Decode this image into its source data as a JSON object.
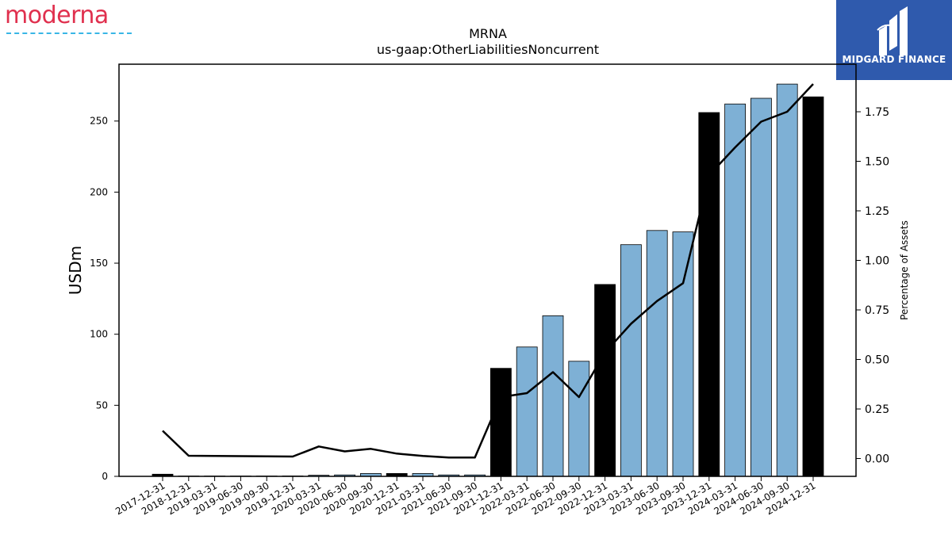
{
  "branding": {
    "company_wordmark": "moderna",
    "company_color": "#e0304e",
    "company_underline_color": "#39b6e6",
    "partner_name": "MIDGARD FINANCE",
    "partner_bg_color": "#2f5aad"
  },
  "chart_data": {
    "type": "bar",
    "title": "MRNA",
    "subtitle": "us-gaap:OtherLiabilitiesNoncurrent",
    "ylabel": "USDm",
    "y2label": "Percentage of Assets",
    "ylim": [
      0,
      290
    ],
    "y2lim": [
      -0.09,
      1.99
    ],
    "yticks": [
      0,
      50,
      100,
      150,
      200,
      250
    ],
    "y2ticks": [
      0.0,
      0.25,
      0.5,
      0.75,
      1.0,
      1.25,
      1.5,
      1.75
    ],
    "y2tick_labels": [
      "0.00",
      "0.25",
      "0.50",
      "0.75",
      "1.00",
      "1.25",
      "1.50",
      "1.75"
    ],
    "categories": [
      "2017-12-31",
      "2018-12-31",
      "2019-03-31",
      "2019-06-30",
      "2019-09-30",
      "2019-12-31",
      "2020-03-31",
      "2020-06-30",
      "2020-09-30",
      "2020-12-31",
      "2021-03-31",
      "2021-06-30",
      "2021-09-30",
      "2021-12-31",
      "2022-03-31",
      "2022-06-30",
      "2022-09-30",
      "2022-12-31",
      "2023-03-31",
      "2023-06-30",
      "2023-09-30",
      "2023-12-31",
      "2024-03-31",
      "2024-06-30",
      "2024-09-30",
      "2024-12-31"
    ],
    "values": [
      1.5,
      0.2,
      0.2,
      0.2,
      0.2,
      0.3,
      0.8,
      1.0,
      2.0,
      2.0,
      2.0,
      1.0,
      1.0,
      76,
      91,
      113,
      81,
      135,
      163,
      173,
      172,
      256,
      262,
      266,
      276,
      267
    ],
    "bar_kind": [
      "annual",
      "annual",
      "quarter",
      "quarter",
      "quarter",
      "annual",
      "quarter",
      "quarter",
      "quarter",
      "annual",
      "quarter",
      "quarter",
      "quarter",
      "annual",
      "quarter",
      "quarter",
      "quarter",
      "annual",
      "quarter",
      "quarter",
      "quarter",
      "annual",
      "quarter",
      "quarter",
      "quarter",
      "annual"
    ],
    "annual_color": "#000000",
    "quarter_color": "#7eb0d5",
    "line_series": {
      "values": [
        0.14,
        0.014,
        0.013,
        0.012,
        0.011,
        0.01,
        0.061,
        0.036,
        0.049,
        0.025,
        0.013,
        0.005,
        0.005,
        0.31,
        0.33,
        0.436,
        0.31,
        0.535,
        0.68,
        0.795,
        0.885,
        1.43,
        1.57,
        1.7,
        1.75,
        1.89
      ],
      "color": "#000000"
    },
    "grid": false,
    "legend": "none"
  }
}
